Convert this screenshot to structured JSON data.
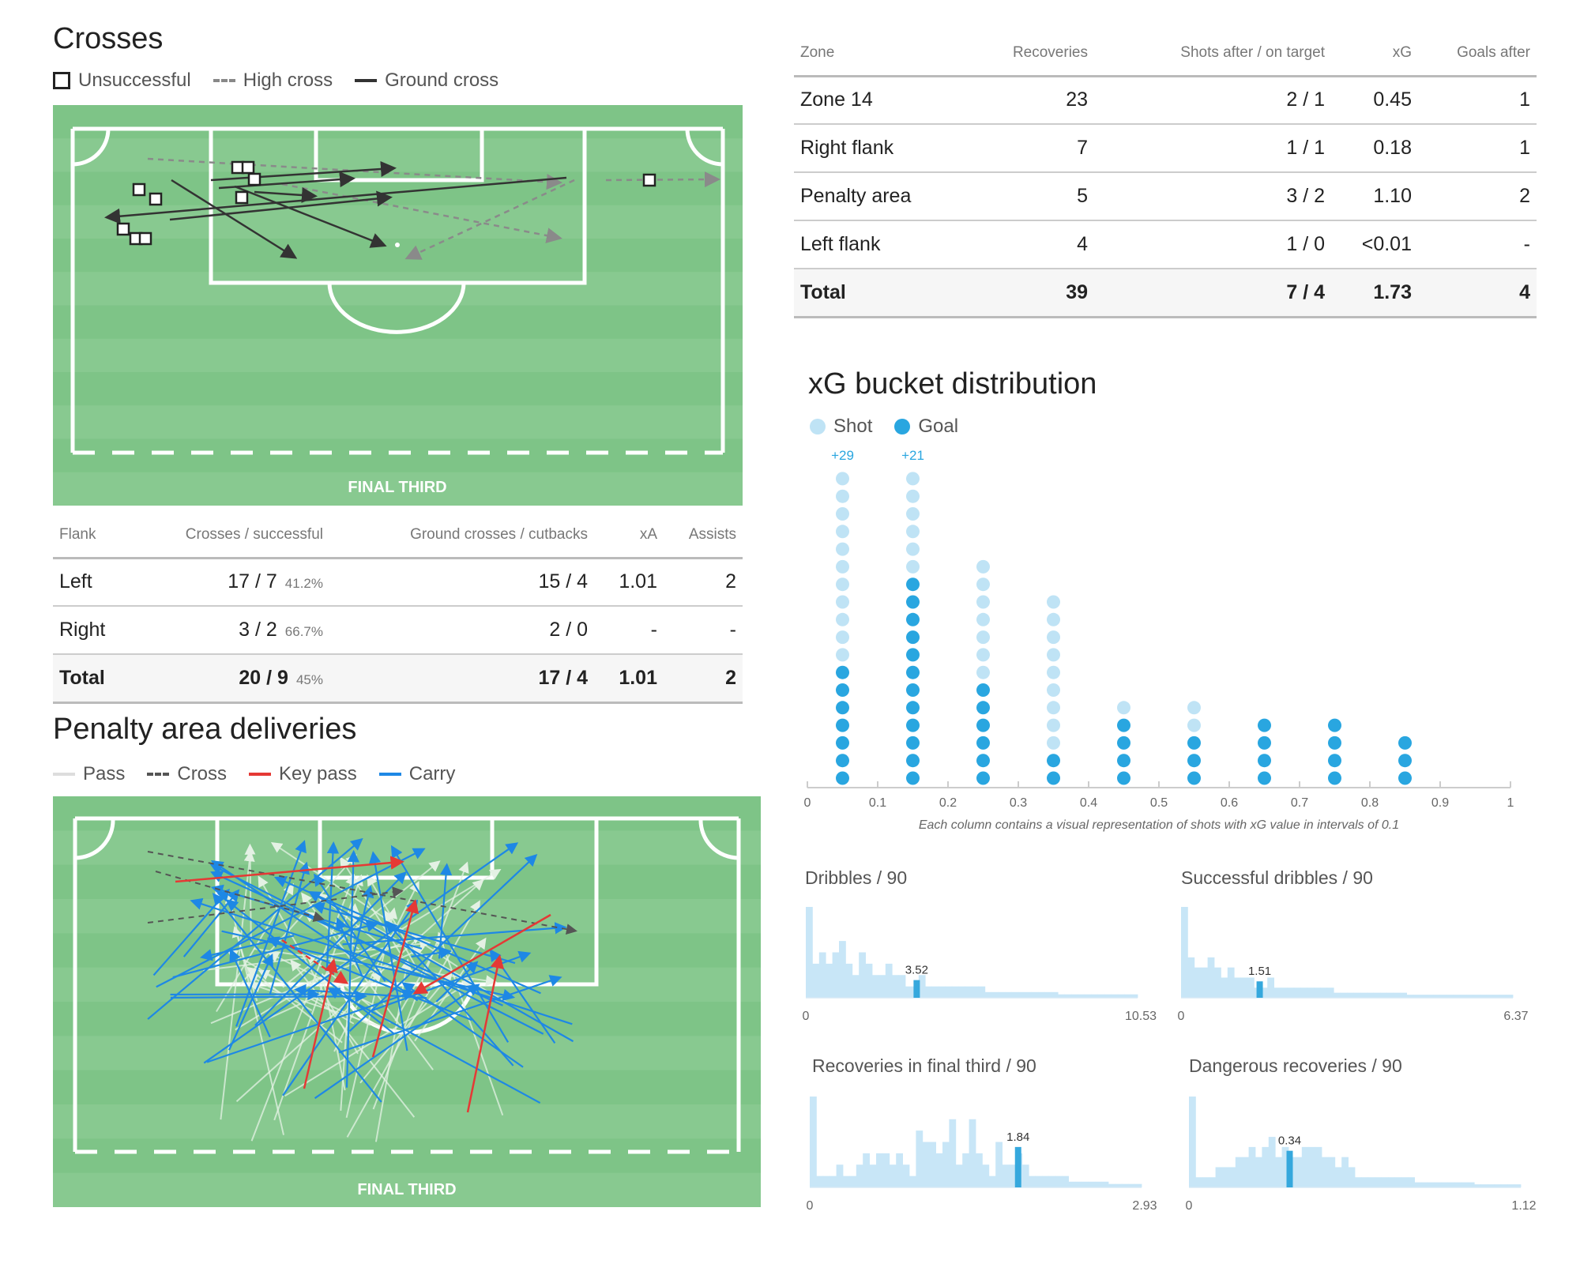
{
  "crosses": {
    "title": "Crosses",
    "legend": [
      "Unsuccessful",
      "High cross",
      "Ground cross"
    ],
    "pitch_label": "FINAL THIRD",
    "table": {
      "headers": [
        "Flank",
        "Crosses / successful",
        "Ground crosses / cutbacks",
        "xA",
        "Assists"
      ],
      "rows": [
        {
          "flank": "Left",
          "crosses": "17 / 7",
          "pct": "41.2%",
          "ground": "15 / 4",
          "xa": "1.01",
          "assists": "2"
        },
        {
          "flank": "Right",
          "crosses": "3 / 2",
          "pct": "66.7%",
          "ground": "2 / 0",
          "xa": "-",
          "assists": "-"
        }
      ],
      "total": {
        "flank": "Total",
        "crosses": "20 / 9",
        "pct": "45%",
        "ground": "17 / 4",
        "xa": "1.01",
        "assists": "2"
      }
    }
  },
  "recoveries_table": {
    "headers": [
      "Zone",
      "Recoveries",
      "Shots after / on target",
      "xG",
      "Goals after"
    ],
    "rows": [
      {
        "zone": "Zone 14",
        "rec": "23",
        "shots": "2 / 1",
        "xg": "0.45",
        "goals": "1"
      },
      {
        "zone": "Right flank",
        "rec": "7",
        "shots": "1 / 1",
        "xg": "0.18",
        "goals": "1"
      },
      {
        "zone": "Penalty area",
        "rec": "5",
        "shots": "3 / 2",
        "xg": "1.10",
        "goals": "2"
      },
      {
        "zone": "Left flank",
        "rec": "4",
        "shots": "1 / 0",
        "xg": "<0.01",
        "goals": "-"
      }
    ],
    "total": {
      "zone": "Total",
      "rec": "39",
      "shots": "7 / 4",
      "xg": "1.73",
      "goals": "4"
    }
  },
  "deliveries": {
    "title": "Penalty area deliveries",
    "legend": [
      "Pass",
      "Cross",
      "Key pass",
      "Carry"
    ],
    "pitch_label": "FINAL THIRD"
  },
  "colors": {
    "pitch": "#7ec487",
    "pitch_stripe": "#88c990",
    "shot": "#bfe3f5",
    "goal": "#29a6e0",
    "hist": "#c8e6f7",
    "hist_marker": "#35a8dd",
    "key_pass": "#e53935",
    "carry": "#1e88e5",
    "cross": "#555555",
    "axis_text": "#666666"
  },
  "chart_data": [
    {
      "type": "scatter",
      "title": "xG bucket distribution",
      "legend": [
        "Shot",
        "Goal"
      ],
      "xlabel": "Each column contains a visual representation of shots with xG value in intervals of 0.1",
      "x_ticks": [
        "0",
        "0.1",
        "0.2",
        "0.3",
        "0.4",
        "0.5",
        "0.6",
        "0.7",
        "0.8",
        "0.9",
        "1"
      ],
      "xlim": [
        0,
        1
      ],
      "buckets": [
        {
          "x": 0.05,
          "shots": 18,
          "goals": 7,
          "overflow": "+29"
        },
        {
          "x": 0.15,
          "shots": 18,
          "goals": 12,
          "overflow": "+21"
        },
        {
          "x": 0.25,
          "shots": 13,
          "goals": 6
        },
        {
          "x": 0.35,
          "shots": 11,
          "goals": 2
        },
        {
          "x": 0.45,
          "shots": 5,
          "goals": 4
        },
        {
          "x": 0.55,
          "shots": 5,
          "goals": 3
        },
        {
          "x": 0.65,
          "shots": 4,
          "goals": 4
        },
        {
          "x": 0.75,
          "shots": 4,
          "goals": 4
        },
        {
          "x": 0.85,
          "shots": 3,
          "goals": 3
        }
      ]
    },
    {
      "type": "bar",
      "title": "Dribbles / 90",
      "xlim": [
        0,
        10.53
      ],
      "min_label": "0",
      "max_label": "10.53",
      "marker": {
        "value": 3.52,
        "label": "3.52"
      },
      "values": [
        8,
        3,
        4,
        3,
        4,
        5,
        3,
        2,
        4,
        3,
        2,
        2,
        3,
        2,
        2,
        1,
        1,
        2,
        1,
        1,
        1,
        1,
        1,
        1,
        1,
        1,
        1,
        0.5,
        0.5,
        0.5,
        0.5,
        0.5,
        0.5,
        0.5,
        0.5,
        0.5,
        0.5,
        0.5,
        0.3,
        0.3,
        0.3,
        0.3,
        0.3,
        0.3,
        0.3,
        0.3,
        0.3,
        0.3,
        0.3,
        0.3
      ]
    },
    {
      "type": "bar",
      "title": "Successful dribbles / 90",
      "xlim": [
        0,
        6.37
      ],
      "min_label": "0",
      "max_label": "6.37",
      "marker": {
        "value": 1.51,
        "label": "1.51"
      },
      "values": [
        9,
        4,
        3,
        3,
        4,
        3,
        2,
        3,
        2,
        2,
        2,
        1,
        1,
        2,
        1,
        1,
        1,
        1,
        1,
        1,
        1,
        1,
        1,
        0.5,
        0.5,
        0.5,
        0.5,
        0.5,
        0.5,
        0.5,
        0.5,
        0.5,
        0.5,
        0.5,
        0.3,
        0.3,
        0.3,
        0.3,
        0.3,
        0.3,
        0.3,
        0.3,
        0.3,
        0.3,
        0.3,
        0.3,
        0.3,
        0.3,
        0.3,
        0.3
      ]
    },
    {
      "type": "bar",
      "title": "Recoveries in final third / 90",
      "xlim": [
        0,
        2.93
      ],
      "min_label": "0",
      "max_label": "2.93",
      "marker": {
        "value": 1.84,
        "label": "1.84"
      },
      "values": [
        8,
        1,
        1,
        1,
        2,
        1,
        1,
        2,
        3,
        2,
        3,
        3,
        2,
        3,
        2,
        1,
        5,
        4,
        4,
        3,
        4,
        6,
        2,
        3,
        6,
        3,
        2,
        1,
        4,
        2,
        2,
        3,
        2,
        1,
        1,
        1,
        1,
        1,
        1,
        0.5,
        0.5,
        0.5,
        0.5,
        0.5,
        0.5,
        0.3,
        0.3,
        0.3,
        0.3,
        0.3
      ]
    },
    {
      "type": "bar",
      "title": "Dangerous recoveries / 90",
      "xlim": [
        0,
        1.12
      ],
      "min_label": "0",
      "max_label": "1.12",
      "marker": {
        "value": 0.34,
        "label": "0.34"
      },
      "values": [
        9,
        1,
        1,
        1,
        2,
        2,
        2,
        3,
        3,
        4,
        3,
        4,
        5,
        3,
        4,
        3,
        3,
        4,
        4,
        4,
        3,
        3,
        2,
        3,
        2,
        1,
        1,
        1,
        1,
        1,
        1,
        1,
        1,
        1,
        0.5,
        0.5,
        0.5,
        0.5,
        0.5,
        0.5,
        0.5,
        0.5,
        0.5,
        0.3,
        0.3,
        0.3,
        0.3,
        0.3,
        0.3,
        0.3
      ]
    }
  ]
}
